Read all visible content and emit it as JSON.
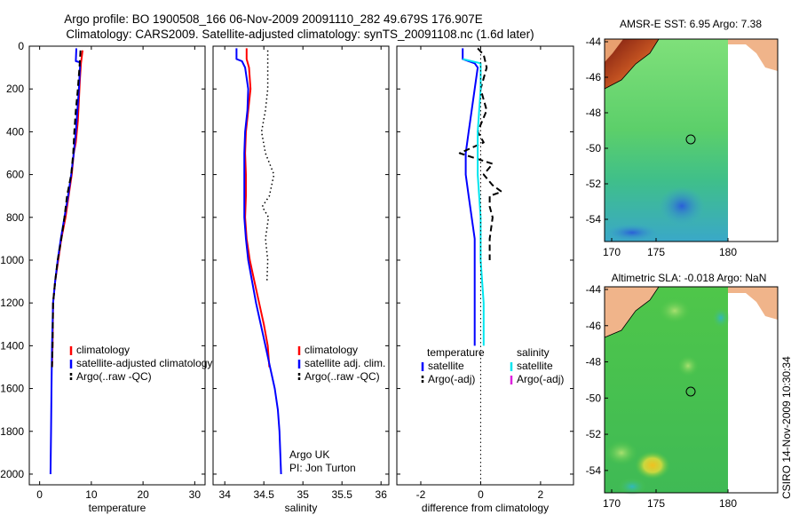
{
  "title_line1": "Argo profile: BO 1900508_166 06-Nov-2009 20091110_282 49.679S 176.907E",
  "title_line2": "Climatology: CARS2009. Satellite-adjusted climatology: synTS_20091108.nc (1.6d later)",
  "timestamp": "CSIRO 14-Nov-2009 10:30:34",
  "colors": {
    "climatology": "#ff0000",
    "satellite": "#0000ff",
    "argo": "#000000",
    "salinity_satellite": "#00e5ee",
    "salinity_argo": "#dd22dd"
  },
  "depth_axis": {
    "ylim": [
      0,
      2050
    ],
    "ticks": [
      0,
      200,
      400,
      600,
      800,
      1000,
      1200,
      1400,
      1600,
      1800,
      2000
    ],
    "tick_labels": [
      "0",
      "200",
      "400",
      "600",
      "800",
      "1000",
      "1200",
      "1400",
      "1600",
      "1800",
      "2000"
    ]
  },
  "chart_data": [
    {
      "type": "line",
      "name": "temperature-panel",
      "xlabel": "temperature",
      "xlim": [
        -2,
        32
      ],
      "xticks": [
        0,
        10,
        20,
        30
      ],
      "xtick_labels": [
        "0",
        "10",
        "20",
        "30"
      ],
      "legend": [
        "climatology",
        "satellite-adjusted climatology",
        "Argo(..raw -QC)"
      ],
      "series": [
        {
          "name": "climatology",
          "style": "solid",
          "color_key": "climatology",
          "points": [
            [
              8.3,
              20
            ],
            [
              8.0,
              80
            ],
            [
              7.8,
              150
            ],
            [
              7.6,
              250
            ],
            [
              7.4,
              350
            ],
            [
              7.0,
              450
            ],
            [
              6.6,
              500
            ],
            [
              6.2,
              600
            ],
            [
              5.6,
              700
            ],
            [
              5.0,
              800
            ],
            [
              4.2,
              900
            ],
            [
              3.6,
              1000
            ],
            [
              3.0,
              1100
            ],
            [
              2.6,
              1200
            ],
            [
              2.5,
              1400
            ],
            [
              2.4,
              1500
            ]
          ]
        },
        {
          "name": "satellite-adjusted climatology",
          "style": "solid",
          "color_key": "satellite",
          "points": [
            [
              7.1,
              10
            ],
            [
              7.0,
              70
            ],
            [
              7.8,
              75
            ],
            [
              7.8,
              100
            ],
            [
              7.6,
              200
            ],
            [
              7.3,
              300
            ],
            [
              7.0,
              400
            ],
            [
              6.6,
              500
            ],
            [
              6.1,
              600
            ],
            [
              5.5,
              700
            ],
            [
              4.8,
              800
            ],
            [
              4.1,
              900
            ],
            [
              3.5,
              1000
            ],
            [
              3.0,
              1100
            ],
            [
              2.6,
              1200
            ],
            [
              2.4,
              1400
            ],
            [
              2.3,
              1600
            ],
            [
              2.2,
              1800
            ],
            [
              2.1,
              2000
            ]
          ]
        },
        {
          "name": "Argo(..raw -QC)",
          "style": "dashed",
          "color_key": "argo",
          "points": [
            [
              7.9,
              20
            ],
            [
              7.7,
              100
            ],
            [
              7.4,
              200
            ],
            [
              7.0,
              300
            ],
            [
              6.7,
              400
            ],
            [
              6.5,
              500
            ],
            [
              6.1,
              600
            ],
            [
              5.3,
              700
            ],
            [
              4.8,
              800
            ],
            [
              4.2,
              900
            ],
            [
              3.5,
              1000
            ],
            [
              3.0,
              1100
            ],
            [
              2.6,
              1200
            ],
            [
              2.5,
              1400
            ],
            [
              2.4,
              1500
            ]
          ]
        }
      ]
    },
    {
      "type": "line",
      "name": "salinity-panel",
      "xlabel": "salinity",
      "xlim": [
        33.85,
        36.1
      ],
      "xticks": [
        34,
        34.5,
        35,
        35.5,
        36
      ],
      "xtick_labels": [
        "34",
        "34.5",
        "35",
        "35.5",
        "36"
      ],
      "legend": [
        "climatology",
        "satellite adj. clim.",
        "Argo(..raw -QC)"
      ],
      "annotation": [
        "Argo UK",
        "PI: Jon Turton"
      ],
      "series": [
        {
          "name": "climatology",
          "style": "solid",
          "color_key": "climatology",
          "points": [
            [
              34.28,
              10
            ],
            [
              34.28,
              60
            ],
            [
              34.31,
              100
            ],
            [
              34.33,
              200
            ],
            [
              34.3,
              300
            ],
            [
              34.27,
              400
            ],
            [
              34.26,
              500
            ],
            [
              34.27,
              600
            ],
            [
              34.27,
              700
            ],
            [
              34.26,
              800
            ],
            [
              34.28,
              900
            ],
            [
              34.32,
              1000
            ],
            [
              34.38,
              1100
            ],
            [
              34.44,
              1200
            ],
            [
              34.5,
              1300
            ],
            [
              34.55,
              1400
            ],
            [
              34.57,
              1500
            ]
          ]
        },
        {
          "name": "satellite adj. clim.",
          "style": "solid",
          "color_key": "satellite",
          "points": [
            [
              34.15,
              10
            ],
            [
              34.15,
              60
            ],
            [
              34.22,
              70
            ],
            [
              34.26,
              100
            ],
            [
              34.3,
              200
            ],
            [
              34.29,
              300
            ],
            [
              34.26,
              400
            ],
            [
              34.25,
              500
            ],
            [
              34.25,
              600
            ],
            [
              34.25,
              700
            ],
            [
              34.25,
              800
            ],
            [
              34.27,
              900
            ],
            [
              34.3,
              1000
            ],
            [
              34.35,
              1100
            ],
            [
              34.4,
              1200
            ],
            [
              34.46,
              1300
            ],
            [
              34.52,
              1400
            ],
            [
              34.58,
              1500
            ],
            [
              34.64,
              1600
            ],
            [
              34.68,
              1700
            ],
            [
              34.7,
              1800
            ],
            [
              34.71,
              1900
            ],
            [
              34.72,
              2000
            ]
          ]
        },
        {
          "name": "Argo(..raw -QC)",
          "style": "dotted",
          "color_key": "argo",
          "points": [
            [
              34.55,
              20
            ],
            [
              34.55,
              100
            ],
            [
              34.55,
              200
            ],
            [
              34.52,
              300
            ],
            [
              34.47,
              400
            ],
            [
              34.52,
              500
            ],
            [
              34.63,
              600
            ],
            [
              34.57,
              700
            ],
            [
              34.48,
              750
            ],
            [
              34.56,
              800
            ],
            [
              34.52,
              900
            ],
            [
              34.55,
              1000
            ],
            [
              34.54,
              1100
            ]
          ]
        }
      ]
    },
    {
      "type": "line",
      "name": "difference-panel",
      "xlabel": "difference from climatology",
      "xlim": [
        -2.8,
        3.1
      ],
      "xticks": [
        -2,
        0,
        2
      ],
      "xtick_labels": [
        "-2",
        "0",
        "2"
      ],
      "legend_groups": [
        {
          "title": "temperature",
          "items": [
            "satellite",
            "Argo(-adj)"
          ]
        },
        {
          "title": "salinity",
          "items": [
            "satellite",
            "Argo(-adj)"
          ]
        }
      ],
      "series": [
        {
          "name": "temperature satellite",
          "style": "solid",
          "color_key": "satellite",
          "points": [
            [
              -0.6,
              10
            ],
            [
              -0.6,
              60
            ],
            [
              -0.2,
              80
            ],
            [
              -0.1,
              100
            ],
            [
              -0.2,
              200
            ],
            [
              -0.3,
              300
            ],
            [
              -0.4,
              400
            ],
            [
              -0.5,
              500
            ],
            [
              -0.5,
              600
            ],
            [
              -0.4,
              700
            ],
            [
              -0.3,
              800
            ],
            [
              -0.2,
              900
            ],
            [
              -0.2,
              1000
            ],
            [
              -0.2,
              1100
            ],
            [
              -0.2,
              1200
            ],
            [
              -0.2,
              1300
            ],
            [
              -0.2,
              1400
            ]
          ]
        },
        {
          "name": "temperature Argo(-adj)",
          "style": "dashed",
          "color_key": "argo",
          "points": [
            [
              -0.1,
              10
            ],
            [
              0.1,
              40
            ],
            [
              0.2,
              100
            ],
            [
              0.0,
              200
            ],
            [
              0.2,
              300
            ],
            [
              -0.1,
              400
            ],
            [
              0.1,
              450
            ],
            [
              -0.7,
              500
            ],
            [
              0.4,
              550
            ],
            [
              0.1,
              600
            ],
            [
              0.4,
              650
            ],
            [
              0.7,
              680
            ],
            [
              0.3,
              700
            ],
            [
              0.3,
              750
            ],
            [
              0.4,
              800
            ],
            [
              0.3,
              900
            ],
            [
              0.3,
              1000
            ]
          ]
        },
        {
          "name": "salinity satellite",
          "style": "solid",
          "color_key": "salinity_satellite",
          "points": [
            [
              -0.6,
              60
            ],
            [
              0.0,
              80
            ],
            [
              0.0,
              200
            ],
            [
              -0.1,
              400
            ],
            [
              -0.1,
              600
            ],
            [
              0.0,
              800
            ],
            [
              0.0,
              1000
            ],
            [
              0.1,
              1200
            ],
            [
              0.1,
              1400
            ]
          ]
        },
        {
          "name": "zero line",
          "style": "dotted",
          "color_key": "argo",
          "points": [
            [
              0,
              0
            ],
            [
              0,
              2050
            ]
          ]
        }
      ]
    }
  ],
  "maps": [
    {
      "title": "AMSR-E SST: 6.95 Argo: 7.38",
      "xticks": [
        "170",
        "175",
        "180"
      ],
      "yticks": [
        "-44",
        "-46",
        "-48",
        "-50",
        "-52",
        "-54"
      ]
    },
    {
      "title": "Altimetric SLA: -0.018 Argo: NaN",
      "xticks": [
        "170",
        "175",
        "180"
      ],
      "yticks": [
        "-44",
        "-46",
        "-48",
        "-50",
        "-52",
        "-54"
      ]
    }
  ]
}
